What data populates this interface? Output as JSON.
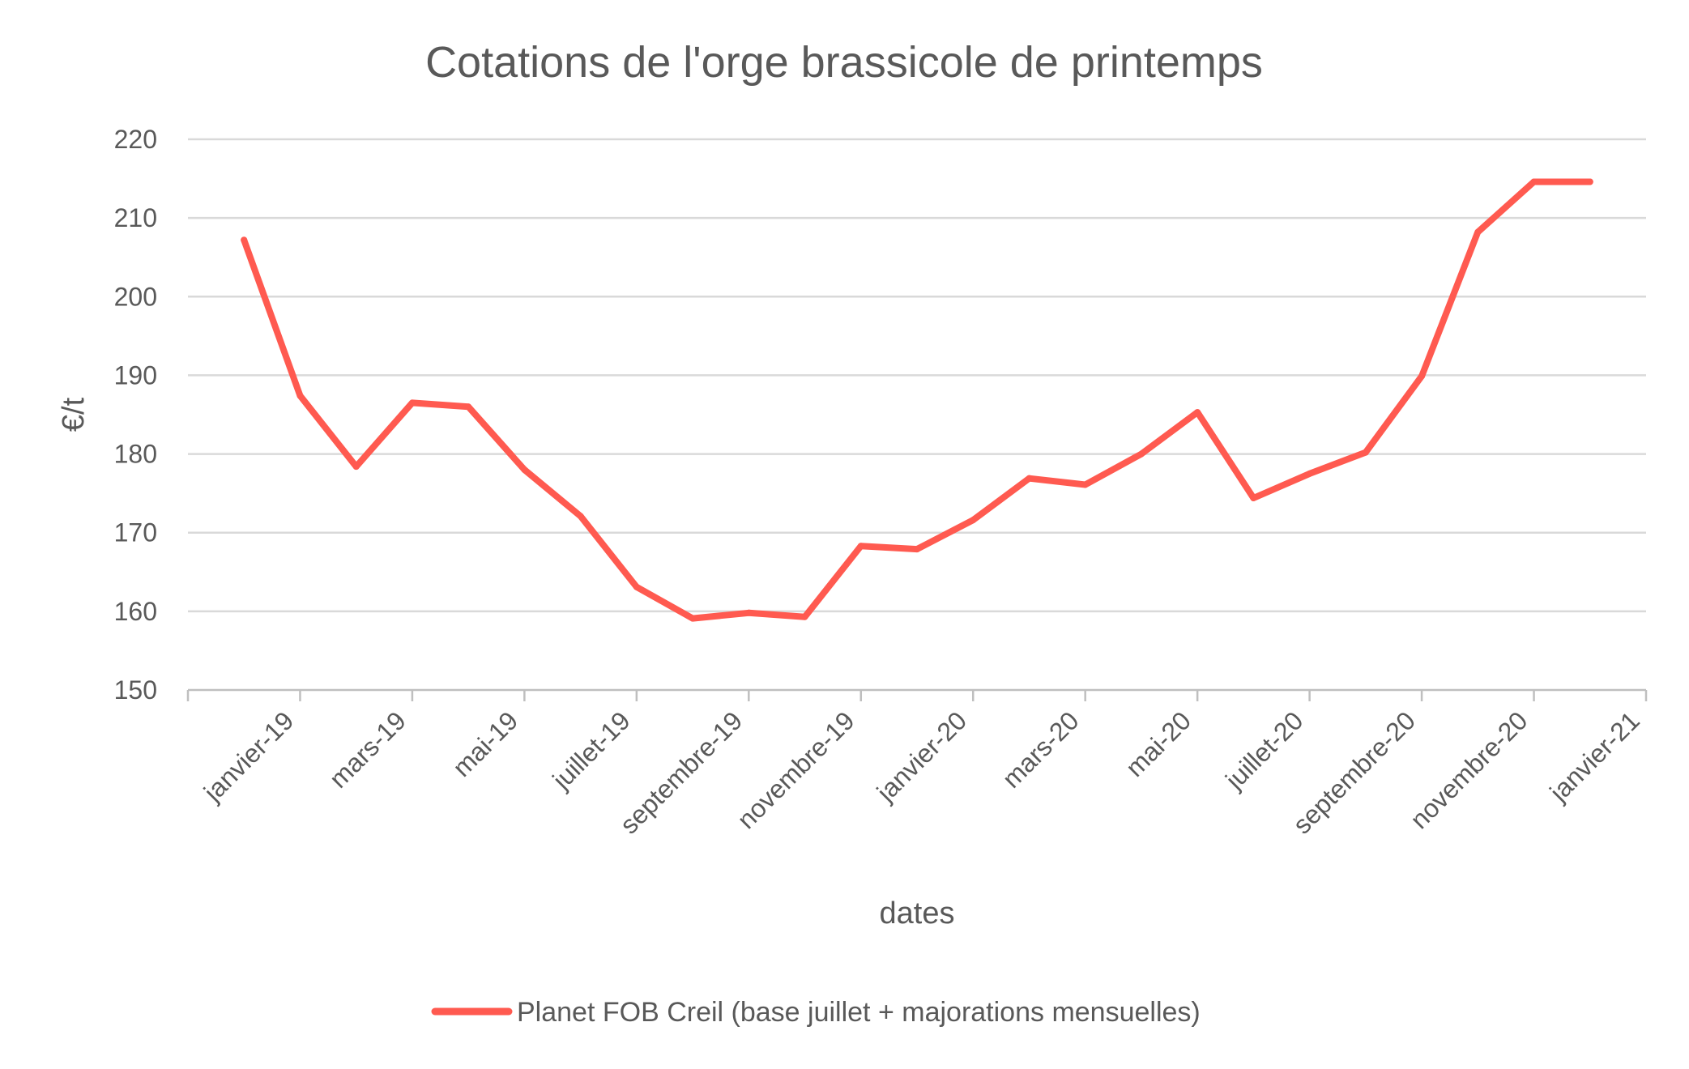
{
  "chart_data": {
    "type": "line",
    "title": "Cotations de l'orge brassicole de printemps",
    "xlabel": "dates",
    "ylabel": "€/t",
    "ylim": [
      150,
      220
    ],
    "yticks": [
      150,
      160,
      170,
      180,
      190,
      200,
      210,
      220
    ],
    "grid": true,
    "legend_position": "bottom",
    "x_tick_labels": [
      "janvier-19",
      "mars-19",
      "mai-19",
      "juillet-19",
      "septembre-19",
      "novembre-19",
      "janvier-20",
      "mars-20",
      "mai-20",
      "juillet-20",
      "septembre-20",
      "novembre-20",
      "janvier-21"
    ],
    "x": [
      "2019-01-15",
      "2019-02-15",
      "2019-03-15",
      "2019-04-15",
      "2019-05-15",
      "2019-06-15",
      "2019-07-15",
      "2019-08-15",
      "2019-09-15",
      "2019-10-15",
      "2019-11-15",
      "2019-12-15",
      "2020-01-15",
      "2020-02-15",
      "2020-03-15",
      "2020-04-15",
      "2020-05-15",
      "2020-06-15",
      "2020-07-15",
      "2020-08-15",
      "2020-09-15",
      "2020-10-15",
      "2020-11-15",
      "2020-12-15",
      "2021-01-15"
    ],
    "series": [
      {
        "name": "Planet FOB Creil (base juillet + majorations mensuelles)",
        "color": "#ff5a50",
        "values": [
          207.2,
          187.4,
          178.4,
          186.5,
          186.0,
          178.0,
          172.1,
          163.1,
          159.1,
          159.8,
          159.3,
          168.3,
          167.9,
          171.6,
          176.9,
          176.1,
          180.0,
          185.3,
          174.4,
          177.5,
          180.2,
          189.9,
          208.2,
          214.6,
          214.6
        ]
      }
    ]
  }
}
